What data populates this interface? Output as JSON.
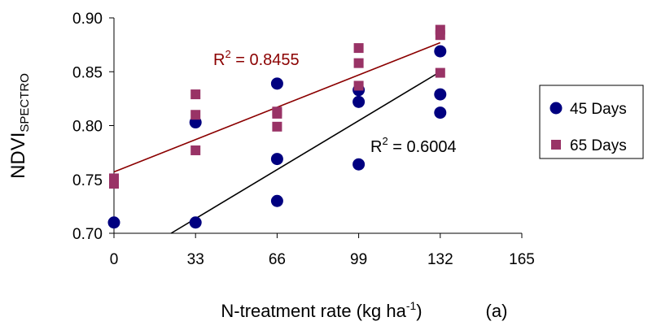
{
  "chart_data": {
    "type": "scatter",
    "xlim": [
      0,
      165
    ],
    "xticks": [
      0,
      33,
      66,
      99,
      132,
      165
    ],
    "ylim": [
      0.7,
      0.9
    ],
    "yticks": [
      {
        "value": 0.7,
        "label": "0.70"
      },
      0.75,
      {
        "value": 0.8,
        "label": "0.80"
      },
      0.85,
      {
        "value": 0.9,
        "label": "0.90"
      }
    ],
    "x_label": {
      "text": "N-treatment rate (kg ha",
      "sup": "-1",
      "end": ")"
    },
    "y_label": {
      "text": "NDVI",
      "sub": "SPECTRO"
    },
    "annotation": "(a)",
    "legend": "right",
    "series": [
      {
        "name": "45 Days",
        "color": "#000080",
        "marker": "circle",
        "x": [
          0,
          33,
          33,
          66,
          66,
          66,
          99,
          99,
          99,
          132,
          132,
          132
        ],
        "values": [
          0.71,
          0.71,
          0.803,
          0.839,
          0.769,
          0.73,
          0.833,
          0.822,
          0.764,
          0.869,
          0.829,
          0.812
        ]
      },
      {
        "name": "65 Days",
        "color": "#993366",
        "marker": "square",
        "x": [
          0,
          0,
          33,
          33,
          33,
          66,
          66,
          66,
          99,
          99,
          99,
          132,
          132,
          132
        ],
        "values": [
          0.751,
          0.746,
          0.829,
          0.81,
          0.777,
          0.813,
          0.811,
          0.799,
          0.872,
          0.858,
          0.837,
          0.889,
          0.884,
          0.849
        ]
      }
    ],
    "trendlines": [
      {
        "color": "#000000",
        "x": [
          23.1,
          132
        ],
        "values": [
          0.7,
          0.85
        ],
        "label": {
          "base": "R",
          "sup": "2",
          "text": " = 0.6004"
        }
      },
      {
        "color": "#8b0000",
        "x": [
          0,
          132
        ],
        "values": [
          0.757,
          0.877
        ],
        "label": {
          "base": "R",
          "sup": "2",
          "text": " = 0.8455"
        }
      }
    ]
  }
}
